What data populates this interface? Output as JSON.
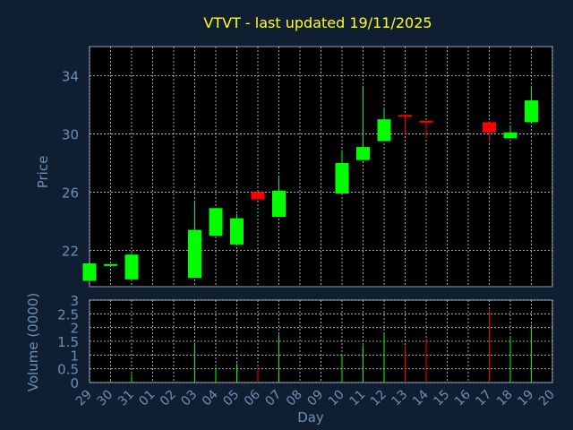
{
  "chart_data": {
    "type": "candlestick",
    "title": "VTVT - last updated 19/11/2025",
    "xlabel": "Day",
    "x_ticks": [
      "29",
      "30",
      "31",
      "01",
      "02",
      "03",
      "04",
      "05",
      "06",
      "07",
      "08",
      "09",
      "10",
      "11",
      "12",
      "13",
      "14",
      "15",
      "16",
      "17",
      "18",
      "19",
      "20"
    ],
    "price_panel": {
      "ylabel": "Price",
      "ylim": [
        19.5,
        36
      ],
      "y_ticks": [
        22,
        26,
        30,
        34
      ],
      "grid": true
    },
    "volume_panel": {
      "ylabel": "Volume (0000)",
      "ylim": [
        0,
        3
      ],
      "y_ticks": [
        0,
        0.5,
        1,
        1.5,
        2,
        2.5,
        3
      ],
      "y_tick_labels": [
        "0",
        "0.5",
        "1",
        "1.5",
        "2",
        "2.5",
        "3"
      ],
      "grid": true
    },
    "candles": [
      {
        "day": "29",
        "open": 19.9,
        "close": 21.1,
        "high": 21.1,
        "low": 19.9,
        "volume": 0.05
      },
      {
        "day": "30",
        "open": 21.0,
        "close": 21.05,
        "high": 21.05,
        "low": 21.0,
        "volume": 0.05
      },
      {
        "day": "31",
        "open": 20.0,
        "close": 21.7,
        "high": 21.8,
        "low": 20.0,
        "volume": 0.3
      },
      {
        "day": "03",
        "open": 20.1,
        "close": 23.4,
        "high": 25.3,
        "low": 20.1,
        "volume": 1.45
      },
      {
        "day": "04",
        "open": 23.0,
        "close": 24.9,
        "high": 24.9,
        "low": 23.0,
        "volume": 0.55
      },
      {
        "day": "05",
        "open": 22.4,
        "close": 24.2,
        "high": 24.5,
        "low": 22.4,
        "volume": 0.7
      },
      {
        "day": "06",
        "open": 26.0,
        "close": 25.5,
        "high": 26.0,
        "low": 25.5,
        "volume": 0.55
      },
      {
        "day": "07",
        "open": 24.3,
        "close": 26.1,
        "high": 27.0,
        "low": 24.3,
        "volume": 1.75
      },
      {
        "day": "10",
        "open": 25.9,
        "close": 28.0,
        "high": 28.9,
        "low": 25.9,
        "volume": 1.05
      },
      {
        "day": "11",
        "open": 28.2,
        "close": 29.1,
        "high": 33.2,
        "low": 28.2,
        "volume": 1.35
      },
      {
        "day": "12",
        "open": 29.5,
        "close": 31.0,
        "high": 31.7,
        "low": 29.5,
        "volume": 1.8
      },
      {
        "day": "13",
        "open": 31.3,
        "close": 31.2,
        "high": 31.3,
        "low": 30.0,
        "volume": 1.35
      },
      {
        "day": "14",
        "open": 30.9,
        "close": 30.8,
        "high": 30.9,
        "low": 29.7,
        "volume": 1.6
      },
      {
        "day": "17",
        "open": 30.8,
        "close": 30.1,
        "high": 30.8,
        "low": 29.4,
        "volume": 2.65
      },
      {
        "day": "18",
        "open": 29.7,
        "close": 30.1,
        "high": 30.6,
        "low": 29.7,
        "volume": 1.65
      },
      {
        "day": "19",
        "open": 30.8,
        "close": 32.3,
        "high": 33.2,
        "low": 30.8,
        "volume": 2.1
      }
    ],
    "colors": {
      "up": "#00ff00",
      "down": "#ff0000",
      "background": "#0f1f31",
      "plot_background": "#000000",
      "grid": "#c8d2dc",
      "title": "#ffff1a",
      "axis_text": "#6c8fb6"
    }
  }
}
